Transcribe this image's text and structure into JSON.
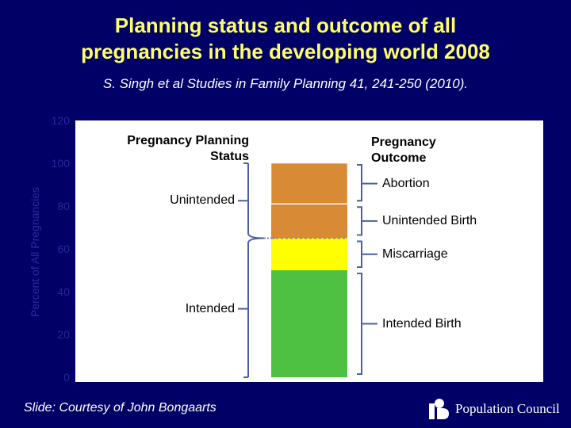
{
  "title_line1": "Planning status and outcome of all",
  "title_line2": "pregnancies in the developing world 2008",
  "subtitle": "S. Singh et al Studies in Family Planning 41, 241-250 (2010).",
  "footer": "Slide: Courtesy of John Bongaarts",
  "logo_text": "Population Council",
  "chart_data": {
    "type": "bar",
    "stacked": true,
    "ylabel": "Percent of All Pregnancies",
    "ylim": [
      0,
      120
    ],
    "yticks": [
      0,
      20,
      40,
      60,
      80,
      100,
      120
    ],
    "grid": false,
    "series": [
      {
        "name": "Intended Birth",
        "value": 50,
        "color": "#4fc142"
      },
      {
        "name": "Miscarriage",
        "value": 15,
        "color": "#ffff00"
      },
      {
        "name": "Unintended Birth",
        "value": 16,
        "color": "#d98a35"
      },
      {
        "name": "Abortion",
        "value": 19,
        "color": "#d98a35"
      }
    ],
    "planning_status_heading": "Pregnancy Planning Status",
    "outcome_heading": "Pregnancy Outcome",
    "planning_groups": [
      {
        "name": "Unintended",
        "range": [
          65,
          100
        ]
      },
      {
        "name": "Intended",
        "range": [
          0,
          65
        ]
      }
    ],
    "colors": {
      "background": "#000066",
      "title": "#ffff66",
      "plot": "#ffffff",
      "axis_text": "#26269a",
      "bracket": "#4d5fa6"
    }
  }
}
